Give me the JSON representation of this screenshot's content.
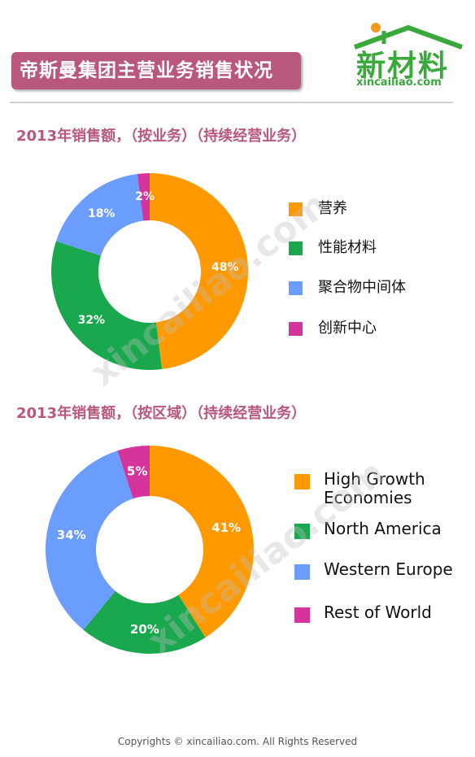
{
  "header": {
    "title": "帝斯曼集团主营业务销售状况",
    "logo_text": "新材料",
    "logo_url": "xincailiao.com"
  },
  "colors": {
    "banner": "#b9587c",
    "section_title": "#b9587c",
    "logo_green": "#3aa83a"
  },
  "watermark": "xincailiao.com",
  "chart_data": [
    {
      "type": "pie",
      "title": "2013年销售额，（按业务）（持续经营业务）",
      "categories": [
        "营养",
        "性能材料",
        "聚合物中间体",
        "创新中心"
      ],
      "values": [
        48,
        32,
        18,
        2
      ],
      "value_labels": [
        "48%",
        "32%",
        "18%",
        "2%"
      ],
      "colors": [
        "#ff9900",
        "#1aa84e",
        "#6b9cff",
        "#d4349c"
      ],
      "legend": "right"
    },
    {
      "type": "pie",
      "title": "2013年销售额，（按区域）（持续经营业务）",
      "categories": [
        "High Growth Economies",
        "North America",
        "Western Europe",
        "Rest of World"
      ],
      "values": [
        41,
        20,
        34,
        5
      ],
      "value_labels": [
        "41%",
        "20%",
        "34%",
        "5%"
      ],
      "colors": [
        "#ff9900",
        "#1aa84e",
        "#6b9cff",
        "#d4349c"
      ],
      "legend": "right"
    }
  ],
  "footer": "Copyrights © xincailiao.com. All Rights Reserved"
}
